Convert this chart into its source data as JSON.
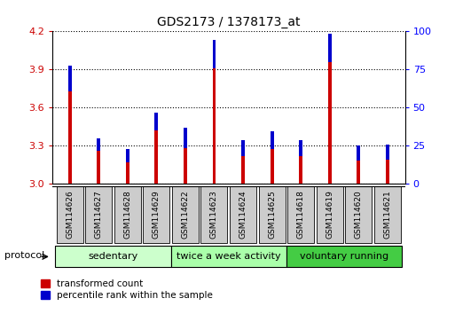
{
  "title": "GDS2173 / 1378173_at",
  "samples": [
    "GSM114626",
    "GSM114627",
    "GSM114628",
    "GSM114629",
    "GSM114622",
    "GSM114623",
    "GSM114624",
    "GSM114625",
    "GSM114618",
    "GSM114619",
    "GSM114620",
    "GSM114621"
  ],
  "transformed_count": [
    3.73,
    3.26,
    3.17,
    3.42,
    3.28,
    3.91,
    3.22,
    3.27,
    3.22,
    3.96,
    3.18,
    3.19
  ],
  "percentile_rank_scaled": [
    0.2,
    0.1,
    0.1,
    0.14,
    0.16,
    0.22,
    0.12,
    0.14,
    0.12,
    0.22,
    0.12,
    0.12
  ],
  "protocol_groups": [
    {
      "label": "sedentary",
      "indices": [
        0,
        1,
        2,
        3
      ],
      "color": "#ccffcc"
    },
    {
      "label": "twice a week activity",
      "indices": [
        4,
        5,
        6,
        7
      ],
      "color": "#aaffaa"
    },
    {
      "label": "voluntary running",
      "indices": [
        8,
        9,
        10,
        11
      ],
      "color": "#44cc44"
    }
  ],
  "ylim_left": [
    3.0,
    4.2
  ],
  "ylim_right": [
    0,
    100
  ],
  "yticks_left": [
    3.0,
    3.3,
    3.6,
    3.9,
    4.2
  ],
  "yticks_right": [
    0,
    25,
    50,
    75,
    100
  ],
  "bar_width": 0.12,
  "red_color": "#cc0000",
  "blue_color": "#0000cc",
  "label_bg_color": "#cccccc",
  "protocol_label": "protocol",
  "legend_red": "transformed count",
  "legend_blue": "percentile rank within the sample",
  "base_value": 3.0
}
